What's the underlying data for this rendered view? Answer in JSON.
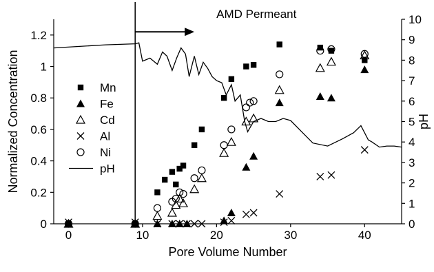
{
  "chart_data": {
    "type": "scatter",
    "xlabel": "Pore Volume Number",
    "ylabel": "Normalized Concentration",
    "y2label": "pH",
    "xlim": [
      -2,
      45
    ],
    "ylim": [
      0,
      1.3
    ],
    "y2lim": [
      0,
      10
    ],
    "xticks": [
      "0",
      "10",
      "20",
      "30",
      "40"
    ],
    "yticks": [
      "0",
      "0.2",
      "0.4",
      "0.6",
      "0.8",
      "1",
      "1.2"
    ],
    "y2ticks": [
      "0",
      "1",
      "2",
      "3",
      "4",
      "5",
      "6",
      "7",
      "8",
      "9",
      "10"
    ],
    "grid": false,
    "legend_position": "left",
    "annotation": {
      "text": "AMD Permeant",
      "arrow_from_x": 9,
      "arrow_to_x": 17,
      "arrow_y": 1.22,
      "vertical_line_x": 9
    },
    "series": [
      {
        "name": "Mn",
        "marker": "filled-square",
        "x": [
          0,
          9,
          12,
          13,
          14,
          14.5,
          15,
          15.5,
          17,
          18,
          21,
          22,
          24,
          25,
          28.5,
          34,
          35.5,
          40
        ],
        "y": [
          0,
          0,
          0.2,
          0.28,
          0.33,
          0.25,
          0.35,
          0.37,
          0.5,
          0.6,
          0.8,
          0.92,
          1.0,
          1.01,
          1.14,
          1.12,
          1.1,
          1.04
        ]
      },
      {
        "name": "Fe",
        "marker": "filled-triangle",
        "x": [
          0,
          9,
          12,
          14,
          15,
          16,
          21,
          22,
          24,
          25,
          28.5,
          34,
          35.5,
          40
        ],
        "y": [
          0,
          0,
          0,
          0,
          0,
          0,
          0.02,
          0.07,
          0.36,
          0.43,
          0.77,
          0.81,
          0.8,
          0.98
        ]
      },
      {
        "name": "Cd",
        "marker": "open-triangle",
        "x": [
          0,
          9,
          12,
          14,
          14.5,
          15,
          15.5,
          17,
          18,
          21,
          22,
          24,
          25,
          28.5,
          34,
          35.5,
          40
        ],
        "y": [
          0,
          0,
          0.05,
          0.07,
          0.12,
          0.16,
          0.13,
          0.22,
          0.29,
          0.45,
          0.52,
          0.65,
          0.67,
          0.85,
          0.99,
          1.03,
          1.07
        ]
      },
      {
        "name": "Al",
        "marker": "x",
        "x": [
          0,
          9,
          12,
          14,
          15,
          16,
          17,
          18,
          21,
          22,
          24,
          25,
          28.5,
          34,
          35.5,
          40
        ],
        "y": [
          0.01,
          0.01,
          0,
          0,
          0,
          0,
          0,
          0,
          0.01,
          0.02,
          0.06,
          0.07,
          0.19,
          0.3,
          0.31,
          0.47
        ]
      },
      {
        "name": "Ni",
        "marker": "open-circle",
        "x": [
          0,
          9,
          12,
          14,
          14.5,
          15,
          15.5,
          17,
          18,
          21,
          22,
          24,
          24.5,
          25,
          28.5,
          34,
          35.5,
          40
        ],
        "y": [
          0,
          0,
          0.1,
          0.14,
          0.16,
          0.2,
          0.19,
          0.29,
          0.34,
          0.5,
          0.6,
          0.74,
          0.77,
          0.78,
          0.95,
          1.1,
          1.11,
          1.08
        ]
      },
      {
        "name": "pH",
        "line": true,
        "axis": "right",
        "x": [
          -2,
          5,
          9,
          9.5,
          10,
          11,
          12,
          12.7,
          13.3,
          14,
          14.6,
          15.2,
          15.8,
          16.3,
          17,
          17.6,
          18.2,
          18.8,
          19.4,
          20,
          20.7,
          21.3,
          22,
          22.5,
          23.2,
          23.8,
          24.2,
          25,
          26,
          27,
          28,
          29,
          30,
          31.5,
          33,
          35,
          37,
          38.5,
          39.5,
          40.5,
          41,
          42,
          43,
          44,
          45
        ],
        "y": [
          8.6,
          8.75,
          8.8,
          8.85,
          7.95,
          8.1,
          7.8,
          8.4,
          8.2,
          7.5,
          8.1,
          8.6,
          8.3,
          7.2,
          8.2,
          7.3,
          7.9,
          7.6,
          7.2,
          7.0,
          6.9,
          6.3,
          6.8,
          6.0,
          6.3,
          5.0,
          4.5,
          5.0,
          5.15,
          5.0,
          5.0,
          5.15,
          5.05,
          4.5,
          3.95,
          3.8,
          4.15,
          4.45,
          4.8,
          4.1,
          4.0,
          3.75,
          3.8,
          3.8,
          3.75
        ]
      }
    ]
  }
}
